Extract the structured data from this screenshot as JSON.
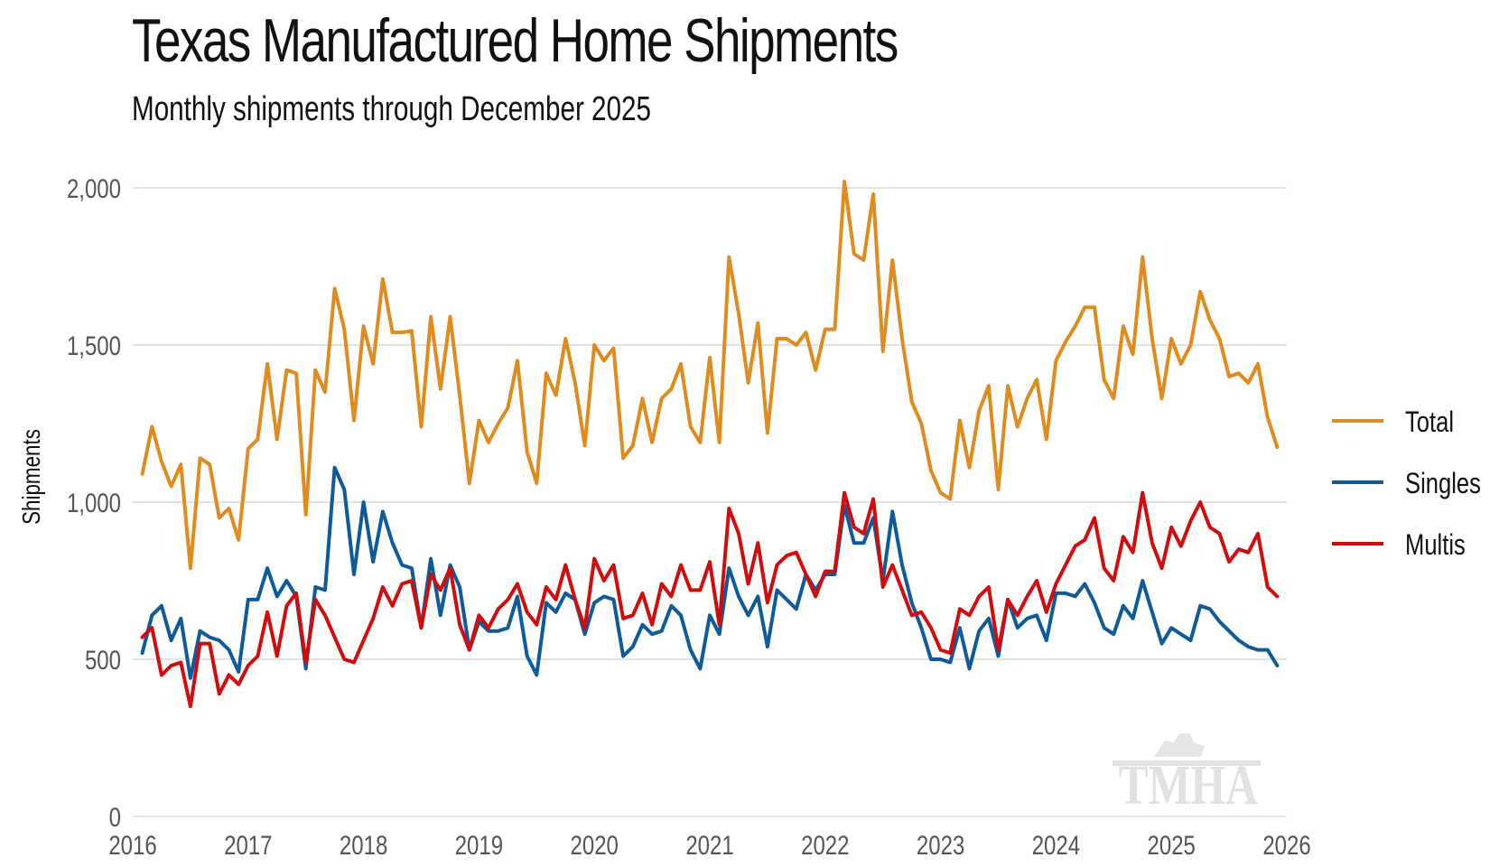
{
  "title": "Texas Manufactured Home Shipments",
  "subtitle": "Monthly shipments through December 2025",
  "logo_text": "TMHA",
  "chart_data": {
    "type": "line",
    "ylabel": "Shipments",
    "xlabel": "",
    "ylim": [
      0,
      2000
    ],
    "xlim": [
      2016,
      2026
    ],
    "yticks": [
      0,
      500,
      1000,
      1500,
      2000
    ],
    "ytick_labels": [
      "0",
      "500",
      "1,000",
      "1,500",
      "2,000"
    ],
    "xticks": [
      2016,
      2017,
      2018,
      2019,
      2020,
      2021,
      2022,
      2023,
      2024,
      2025,
      2026
    ],
    "xtick_labels": [
      "2016",
      "2017",
      "2018",
      "2019",
      "2020",
      "2021",
      "2022",
      "2023",
      "2024",
      "2025",
      "2026"
    ],
    "grid": "horizontal",
    "legend_position": "right",
    "x_start": "2016-01",
    "x_step": "month",
    "series": [
      {
        "name": "Total",
        "color": "#E08B1D",
        "values": [
          1090,
          1240,
          1130,
          1050,
          1120,
          790,
          1140,
          1120,
          950,
          980,
          880,
          1170,
          1200,
          1440,
          1200,
          1420,
          1410,
          960,
          1420,
          1350,
          1680,
          1550,
          1260,
          1560,
          1440,
          1710,
          1540,
          1540,
          1545,
          1240,
          1590,
          1360,
          1590,
          1340,
          1060,
          1260,
          1190,
          1250,
          1300,
          1450,
          1160,
          1060,
          1410,
          1340,
          1520,
          1380,
          1180,
          1500,
          1450,
          1490,
          1140,
          1180,
          1330,
          1190,
          1330,
          1360,
          1440,
          1240,
          1190,
          1460,
          1190,
          1780,
          1600,
          1380,
          1570,
          1220,
          1520,
          1520,
          1500,
          1540,
          1420,
          1550,
          1550,
          2020,
          1790,
          1770,
          1980,
          1480,
          1770,
          1520,
          1320,
          1250,
          1100,
          1030,
          1010,
          1260,
          1110,
          1290,
          1370,
          1040,
          1370,
          1240,
          1330,
          1390,
          1200,
          1450,
          1510,
          1560,
          1620,
          1620,
          1390,
          1330,
          1560,
          1470,
          1780,
          1520,
          1330,
          1520,
          1440,
          1500,
          1670,
          1580,
          1520,
          1400,
          1410,
          1380,
          1440,
          1270,
          1175
        ]
      },
      {
        "name": "Singles",
        "color": "#0F5A9B",
        "values": [
          520,
          640,
          670,
          560,
          630,
          440,
          590,
          570,
          560,
          530,
          460,
          690,
          690,
          790,
          700,
          750,
          700,
          470,
          730,
          720,
          1110,
          1040,
          770,
          1000,
          810,
          970,
          870,
          800,
          790,
          600,
          820,
          640,
          800,
          730,
          530,
          620,
          590,
          590,
          600,
          700,
          510,
          450,
          680,
          650,
          710,
          690,
          580,
          680,
          700,
          690,
          510,
          540,
          610,
          580,
          590,
          670,
          640,
          530,
          470,
          640,
          580,
          790,
          700,
          640,
          700,
          540,
          720,
          690,
          660,
          770,
          720,
          770,
          770,
          990,
          870,
          870,
          950,
          750,
          970,
          800,
          680,
          600,
          500,
          500,
          490,
          600,
          470,
          590,
          630,
          510,
          690,
          600,
          630,
          640,
          560,
          710,
          710,
          700,
          740,
          680,
          600,
          580,
          670,
          630,
          750,
          650,
          550,
          600,
          580,
          560,
          670,
          660,
          620,
          590,
          560,
          540,
          530,
          530,
          480
        ]
      },
      {
        "name": "Multis",
        "color": "#D20C0C",
        "values": [
          570,
          600,
          450,
          480,
          490,
          350,
          550,
          550,
          390,
          450,
          420,
          480,
          510,
          650,
          510,
          670,
          710,
          490,
          690,
          640,
          570,
          500,
          490,
          560,
          630,
          730,
          670,
          740,
          750,
          600,
          770,
          720,
          790,
          610,
          530,
          640,
          600,
          660,
          690,
          740,
          650,
          610,
          730,
          690,
          800,
          690,
          600,
          820,
          750,
          800,
          630,
          640,
          710,
          610,
          740,
          700,
          800,
          720,
          720,
          810,
          610,
          980,
          900,
          740,
          870,
          680,
          800,
          830,
          840,
          770,
          700,
          780,
          780,
          1030,
          920,
          900,
          1010,
          730,
          800,
          720,
          640,
          650,
          600,
          530,
          520,
          660,
          640,
          700,
          730,
          530,
          690,
          640,
          700,
          750,
          650,
          740,
          800,
          860,
          880,
          950,
          790,
          750,
          890,
          840,
          1030,
          870,
          790,
          920,
          860,
          940,
          1000,
          920,
          900,
          810,
          850,
          840,
          900,
          730,
          700
        ]
      }
    ]
  }
}
